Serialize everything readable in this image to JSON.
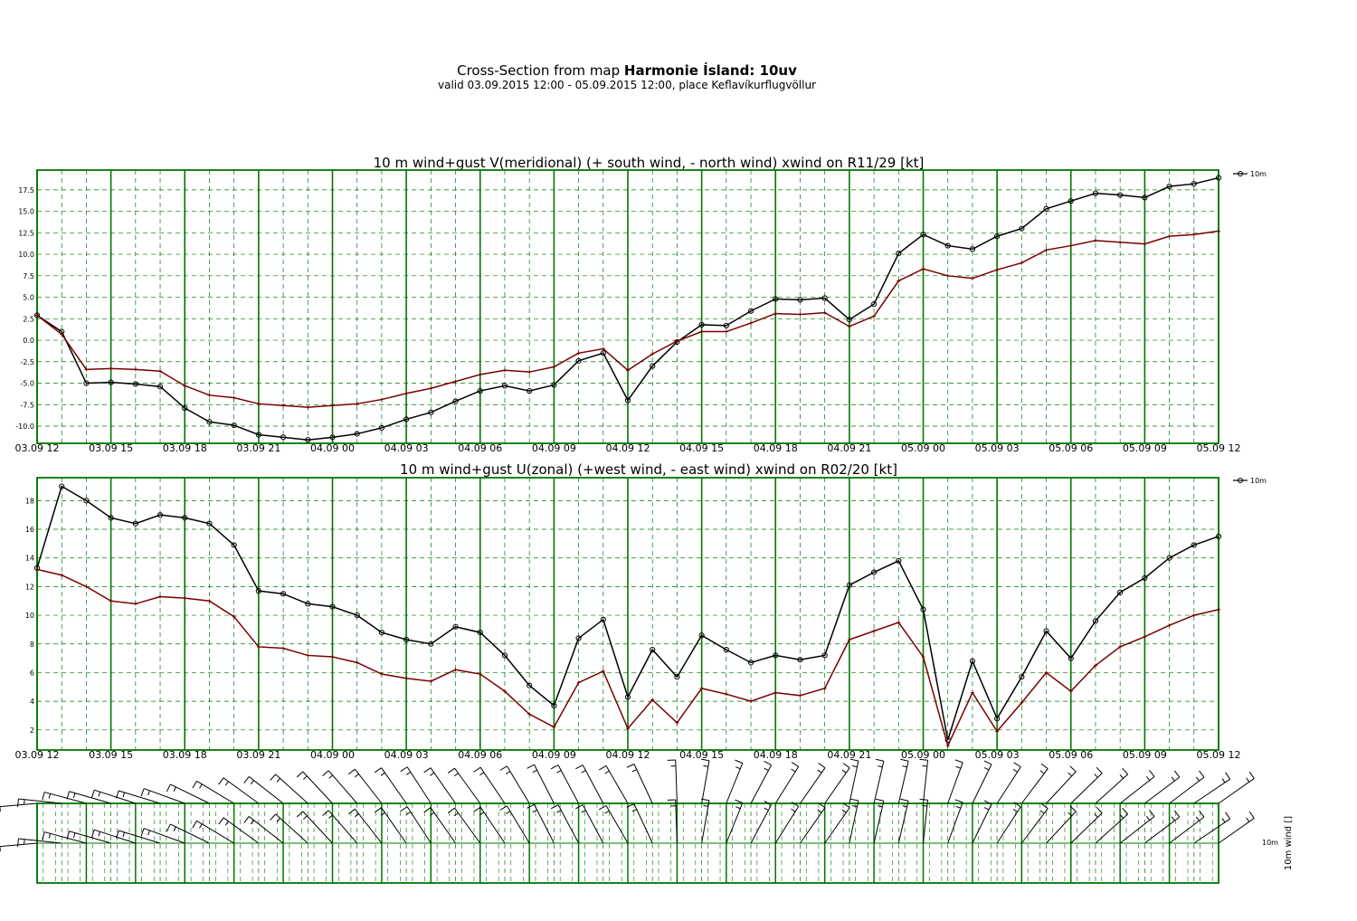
{
  "header": {
    "title_prefix": "Cross-Section from map ",
    "title_bold": "Harmonie Ísland: 10uv",
    "subtitle": "valid 03.09.2015 12:00 - 05.09.2015 12:00, place Keflavíkurflugvöllur"
  },
  "colors": {
    "grid": "#007700",
    "wind": "#000000",
    "gust": "#770000"
  },
  "x_tick_labels": [
    "03.09 12",
    "03.09 15",
    "03.09 18",
    "03.09 21",
    "04.09 00",
    "04.09 03",
    "04.09 06",
    "04.09 09",
    "04.09 12",
    "04.09 15",
    "04.09 18",
    "04.09 21",
    "05.09 00",
    "05.09 03",
    "05.09 06",
    "05.09 09",
    "05.09 12"
  ],
  "chart_data": [
    {
      "type": "line",
      "title": "10 m wind+gust V(meridional) (+ south wind, - north wind) xwind on R11/29 [kt]",
      "x_hours": [
        0,
        1,
        2,
        3,
        4,
        5,
        6,
        7,
        8,
        9,
        10,
        11,
        12,
        13,
        14,
        15,
        16,
        17,
        18,
        19,
        20,
        21,
        22,
        23,
        24,
        25,
        26,
        27,
        28,
        29,
        30,
        31,
        32,
        33,
        34,
        35,
        36,
        37,
        38,
        39,
        40,
        41,
        42,
        43,
        44,
        45,
        46,
        47,
        48
      ],
      "ylim": [
        -12,
        19.8
      ],
      "yticks": [
        17.5,
        15.0,
        12.5,
        10.0,
        7.5,
        5.0,
        2.5,
        0.0,
        -2.5,
        -5.0,
        -7.5,
        -10.0
      ],
      "legend": "10m",
      "series": [
        {
          "name": "10m",
          "marker": "circle",
          "values": [
            2.9,
            1.0,
            -5.0,
            -4.9,
            -5.1,
            -5.4,
            -7.9,
            -9.5,
            -9.9,
            -11.0,
            -11.3,
            -11.6,
            -11.3,
            -10.9,
            -10.2,
            -9.2,
            -8.4,
            -7.1,
            -5.9,
            -5.3,
            -5.9,
            -5.2,
            -2.4,
            -1.5,
            -7.0,
            -3.0,
            -0.2,
            1.8,
            1.7,
            3.4,
            4.8,
            4.7,
            4.9,
            2.4,
            4.2,
            10.1,
            12.3,
            11.0,
            10.6,
            12.1,
            13.0,
            15.3,
            16.2,
            17.1,
            16.9,
            16.6,
            17.9,
            18.2,
            18.9
          ]
        },
        {
          "values": [
            2.9,
            0.7,
            -3.4,
            -3.3,
            -3.4,
            -3.6,
            -5.3,
            -6.4,
            -6.7,
            -7.4,
            -7.6,
            -7.8,
            -7.6,
            -7.4,
            -6.9,
            -6.2,
            -5.6,
            -4.8,
            -4.0,
            -3.5,
            -3.7,
            -3.1,
            -1.5,
            -1.0,
            -3.5,
            -1.6,
            -0.1,
            1.0,
            1.0,
            2.0,
            3.1,
            3.0,
            3.2,
            1.6,
            2.8,
            6.9,
            8.3,
            7.5,
            7.2,
            8.2,
            9.0,
            10.5,
            11.0,
            11.6,
            11.4,
            11.2,
            12.1,
            12.3,
            12.7
          ]
        }
      ]
    },
    {
      "type": "line",
      "title": "10 m wind+gust U(zonal) (+west wind, - east wind) xwind on R02/20 [kt]",
      "x_hours": [
        0,
        1,
        2,
        3,
        4,
        5,
        6,
        7,
        8,
        9,
        10,
        11,
        12,
        13,
        14,
        15,
        16,
        17,
        18,
        19,
        20,
        21,
        22,
        23,
        24,
        25,
        26,
        27,
        28,
        29,
        30,
        31,
        32,
        33,
        34,
        35,
        36,
        37,
        38,
        39,
        40,
        41,
        42,
        43,
        44,
        45,
        46,
        47,
        48
      ],
      "ylim": [
        0.6,
        19.6
      ],
      "yticks": [
        18,
        16,
        14,
        12,
        10,
        8,
        6,
        4,
        2
      ],
      "legend": "10m",
      "series": [
        {
          "name": "10m",
          "marker": "circle",
          "values": [
            13.3,
            19.0,
            18.0,
            16.8,
            16.4,
            17.0,
            16.8,
            16.4,
            14.9,
            11.7,
            11.5,
            10.8,
            10.6,
            10.0,
            8.8,
            8.3,
            8.0,
            9.2,
            8.8,
            7.2,
            5.1,
            3.7,
            8.4,
            9.7,
            4.3,
            7.6,
            5.7,
            8.6,
            7.6,
            6.7,
            7.2,
            6.9,
            7.2,
            12.1,
            13.0,
            13.8,
            10.4,
            1.3,
            6.8,
            2.8,
            5.7,
            8.9,
            7.0,
            9.6,
            11.6,
            12.6,
            14.0,
            14.9,
            15.5
          ]
        },
        {
          "values": [
            13.2,
            12.8,
            12.0,
            11.0,
            10.8,
            11.3,
            11.2,
            11.0,
            9.9,
            7.8,
            7.7,
            7.2,
            7.1,
            6.7,
            5.9,
            5.6,
            5.4,
            6.2,
            5.9,
            4.7,
            3.1,
            2.2,
            5.3,
            6.1,
            2.1,
            4.1,
            2.5,
            4.9,
            4.5,
            4.0,
            4.6,
            4.4,
            4.9,
            8.3,
            8.9,
            9.5,
            7.1,
            0.9,
            4.6,
            1.9,
            3.9,
            6.0,
            4.7,
            6.5,
            7.8,
            8.5,
            9.3,
            10.0,
            10.4
          ]
        }
      ]
    },
    {
      "type": "barbs",
      "ylabel": "10m wind []",
      "level_label": "10m",
      "x_hours": [
        0,
        1,
        2,
        3,
        4,
        5,
        6,
        7,
        8,
        9,
        10,
        11,
        12,
        13,
        14,
        15,
        16,
        17,
        18,
        19,
        20,
        21,
        22,
        23,
        24,
        25,
        26,
        27,
        28,
        29,
        30,
        31,
        32,
        33,
        34,
        35,
        36,
        37,
        38,
        39,
        40,
        41,
        42,
        43,
        44,
        45,
        46,
        47,
        48
      ],
      "barb_direction_deg": [
        85,
        96,
        105,
        106,
        108,
        107,
        110,
        116,
        121,
        126,
        128,
        132,
        137,
        139,
        142,
        145,
        147,
        145,
        144,
        146,
        149,
        153,
        152,
        152,
        150,
        155,
        178,
        190,
        202,
        208,
        212,
        215,
        215,
        192,
        193,
        193,
        186,
        200,
        206,
        213,
        217,
        223,
        226,
        228,
        232,
        233,
        233,
        236,
        235
      ]
    }
  ]
}
